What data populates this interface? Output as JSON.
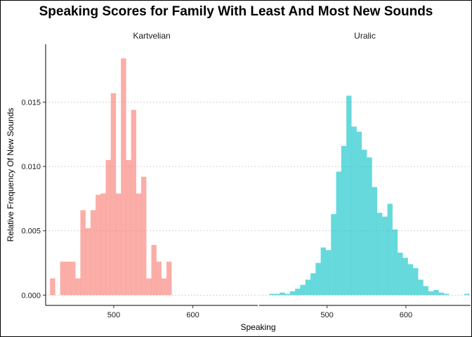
{
  "chart_data": {
    "type": "histogram",
    "title": "Speaking Scores for Family With Least And Most New Sounds",
    "xlabel": "Speaking",
    "ylabel": "Relative Frequency Of New Sounds",
    "xlim": [
      414,
      682
    ],
    "ylim": [
      -0.0008,
      0.0195
    ],
    "x_ticks": [
      500,
      600
    ],
    "x_tick_labels": [
      "500",
      "600"
    ],
    "y_ticks": [
      0.0,
      0.005,
      0.01,
      0.015
    ],
    "y_tick_labels": [
      "0.000",
      "0.005",
      "0.010",
      "0.015"
    ],
    "bin_width": 6.4,
    "grid": "horizontal dotted at y ticks",
    "legend": "none",
    "panels": [
      {
        "name": "Kartvelian",
        "color": "#F8766D",
        "bins": [
          {
            "x0": 419.5,
            "y": 0.0013
          },
          {
            "x0": 432.3,
            "y": 0.0026
          },
          {
            "x0": 438.7,
            "y": 0.0026
          },
          {
            "x0": 445.1,
            "y": 0.0026
          },
          {
            "x0": 451.5,
            "y": 0.0013
          },
          {
            "x0": 457.9,
            "y": 0.0066
          },
          {
            "x0": 464.3,
            "y": 0.0052
          },
          {
            "x0": 470.7,
            "y": 0.0066
          },
          {
            "x0": 477.1,
            "y": 0.0078
          },
          {
            "x0": 483.5,
            "y": 0.0079
          },
          {
            "x0": 489.9,
            "y": 0.0105
          },
          {
            "x0": 496.3,
            "y": 0.0157
          },
          {
            "x0": 502.7,
            "y": 0.0079
          },
          {
            "x0": 509.1,
            "y": 0.0184
          },
          {
            "x0": 515.5,
            "y": 0.0105
          },
          {
            "x0": 521.9,
            "y": 0.0144
          },
          {
            "x0": 528.3,
            "y": 0.0079
          },
          {
            "x0": 534.7,
            "y": 0.0092
          },
          {
            "x0": 541.1,
            "y": 0.0013
          },
          {
            "x0": 547.5,
            "y": 0.0039
          },
          {
            "x0": 553.9,
            "y": 0.0026
          },
          {
            "x0": 560.3,
            "y": 0.0013
          },
          {
            "x0": 566.7,
            "y": 0.0026
          }
        ]
      },
      {
        "name": "Uralic",
        "color": "#00BFC4",
        "bins": [
          {
            "x0": 427.0,
            "y": 0.0001
          },
          {
            "x0": 433.5,
            "y": 0.0001
          },
          {
            "x0": 440.0,
            "y": 0.0002
          },
          {
            "x0": 446.5,
            "y": 0.0001
          },
          {
            "x0": 453.0,
            "y": 0.0003
          },
          {
            "x0": 459.5,
            "y": 0.0005
          },
          {
            "x0": 466.0,
            "y": 0.0008
          },
          {
            "x0": 472.5,
            "y": 0.0012
          },
          {
            "x0": 479.0,
            "y": 0.0017
          },
          {
            "x0": 485.5,
            "y": 0.0025
          },
          {
            "x0": 492.0,
            "y": 0.0037
          },
          {
            "x0": 498.5,
            "y": 0.0035
          },
          {
            "x0": 505.0,
            "y": 0.0063
          },
          {
            "x0": 511.5,
            "y": 0.0096
          },
          {
            "x0": 518.0,
            "y": 0.0116
          },
          {
            "x0": 524.5,
            "y": 0.0155
          },
          {
            "x0": 531.0,
            "y": 0.0131
          },
          {
            "x0": 537.5,
            "y": 0.0127
          },
          {
            "x0": 544.0,
            "y": 0.0113
          },
          {
            "x0": 550.5,
            "y": 0.0107
          },
          {
            "x0": 557.0,
            "y": 0.0084
          },
          {
            "x0": 563.5,
            "y": 0.0064
          },
          {
            "x0": 570.0,
            "y": 0.0061
          },
          {
            "x0": 576.5,
            "y": 0.0071
          },
          {
            "x0": 583.0,
            "y": 0.0051
          },
          {
            "x0": 589.5,
            "y": 0.0033
          },
          {
            "x0": 596.0,
            "y": 0.0029
          },
          {
            "x0": 602.5,
            "y": 0.0024
          },
          {
            "x0": 609.0,
            "y": 0.0021
          },
          {
            "x0": 615.5,
            "y": 0.0012
          },
          {
            "x0": 622.0,
            "y": 0.0007
          },
          {
            "x0": 628.5,
            "y": 0.0003
          },
          {
            "x0": 635.0,
            "y": 0.0004
          },
          {
            "x0": 641.5,
            "y": 0.0002
          },
          {
            "x0": 648.0,
            "y": 0.0001
          },
          {
            "x0": 674.0,
            "y": 0.0001
          }
        ]
      }
    ]
  }
}
